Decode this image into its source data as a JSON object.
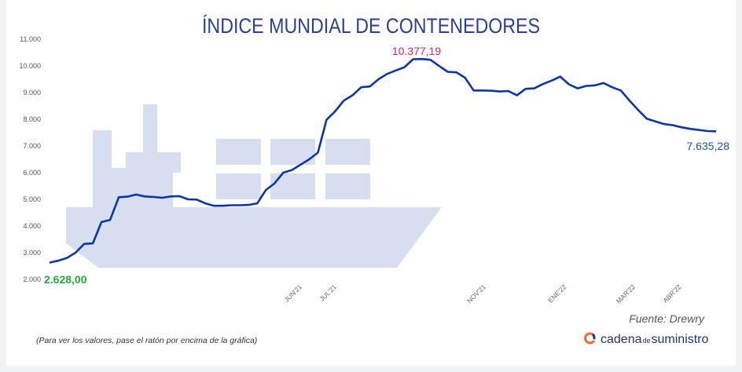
{
  "chart_data": {
    "type": "line",
    "title": "ÍNDICE MUNDIAL DE CONTENEDORES",
    "yticks": [
      "2.000",
      "3.000",
      "4.000",
      "5.000",
      "6.000",
      "7.000",
      "8.000",
      "9.000",
      "10.000",
      "11.000"
    ],
    "ylim": [
      2000,
      11000
    ],
    "xlim": [
      0,
      58
    ],
    "xticks": [
      {
        "label": "JUN'21",
        "x": 22
      },
      {
        "label": "JUL'21",
        "x": 25
      },
      {
        "label": "NOV'21",
        "x": 38
      },
      {
        "label": "ENE'22",
        "x": 45
      },
      {
        "label": "MAR'22",
        "x": 51
      },
      {
        "label": "ABR'22",
        "x": 55
      }
    ],
    "series": [
      {
        "color": "#0b35a8",
        "values": [
          2628,
          2700,
          2800,
          3000,
          3330,
          3350,
          4150,
          4230,
          5080,
          5100,
          5180,
          5110,
          5090,
          5060,
          5110,
          5120,
          5000,
          4990,
          4850,
          4760,
          4760,
          4780,
          4780,
          4790,
          4850,
          5350,
          5600,
          6000,
          6100,
          6300,
          6500,
          6750,
          7980,
          8300,
          8700,
          8900,
          9200,
          9230,
          9500,
          9700,
          9830,
          9950,
          10250,
          10260,
          10230,
          10000,
          9780,
          9760,
          9560,
          9080,
          9080,
          9070,
          9040,
          9060,
          8900,
          9140,
          9160,
          9320,
          9450,
          9600,
          9310,
          9160,
          9250,
          9270,
          9360,
          9200,
          9080,
          8700,
          8350,
          8020,
          7920,
          7820,
          7780,
          7700,
          7640,
          7600,
          7560,
          7550
        ]
      }
    ],
    "annotations": {
      "min_label": "2.628,00",
      "max_label": "10.377,19",
      "last_label": "7.635,28"
    }
  },
  "source": "Fuente: Drewry",
  "hint": "(Para ver los valores, pase el ratón por encima de la gráfica)",
  "logo": {
    "part1": "cadena",
    "part2": "de",
    "part3": "suministro",
    "icon": "cadena-logo-icon"
  },
  "colors": {
    "line": "#0b35a8",
    "ship": "#d6def0",
    "title": "#2b3f9a"
  }
}
